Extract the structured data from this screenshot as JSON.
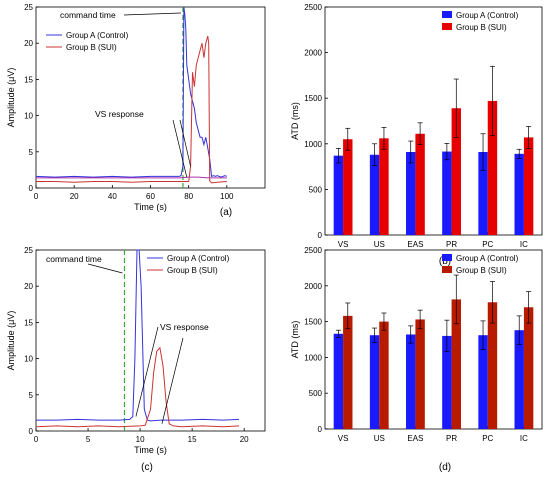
{
  "chart_data": [
    {
      "id": "a",
      "panel_label": "(a)",
      "type": "line",
      "xlabel": "Time (s)",
      "ylabel": "Amplitude (μV)",
      "xlim": [
        0,
        120
      ],
      "ylim": [
        0,
        25
      ],
      "xticks": [
        0,
        20,
        40,
        60,
        80,
        100
      ],
      "yticks": [
        0,
        5,
        10,
        15,
        20,
        25
      ],
      "legend_position": "top-left",
      "series": [
        {
          "name": "Group A (Control)",
          "color": "#3333dd",
          "x": [
            0,
            10,
            20,
            30,
            40,
            50,
            60,
            70,
            75,
            76,
            77,
            77.5,
            78,
            78.5,
            79,
            80,
            81,
            82,
            83,
            84,
            85,
            86,
            87,
            88,
            89,
            90,
            91,
            92,
            93,
            94,
            95,
            96,
            97,
            98,
            99,
            100
          ],
          "y": [
            1.6,
            1.5,
            1.6,
            1.5,
            1.6,
            1.5,
            1.6,
            1.6,
            1.6,
            1.7,
            3,
            25,
            24,
            22,
            17,
            15,
            13,
            12,
            11,
            9,
            8,
            7,
            7,
            6,
            7,
            5.5,
            4,
            1.6,
            1.7,
            1.6,
            1.7,
            1.6,
            1.5,
            1.6,
            1.7,
            1.6
          ]
        },
        {
          "name": "Group B (SUI)",
          "color": "#cc3333",
          "x": [
            0,
            10,
            20,
            30,
            40,
            50,
            60,
            70,
            80,
            81,
            82,
            83,
            84,
            85,
            86,
            87,
            88,
            89,
            90,
            90.5,
            91,
            92,
            95,
            100
          ],
          "y": [
            0.9,
            0.9,
            0.8,
            0.9,
            0.9,
            0.8,
            0.9,
            0.9,
            0.9,
            3,
            16,
            14,
            17,
            18,
            19,
            20,
            18,
            20,
            21,
            20,
            1,
            0.7,
            0.8,
            0.9
          ]
        },
        {
          "name": "",
          "color": "#aa33aa",
          "x": [
            0,
            20,
            40,
            60,
            75,
            80,
            85,
            90,
            95,
            100
          ],
          "y": [
            1.4,
            1.4,
            1.4,
            1.4,
            1.4,
            1.5,
            1.5,
            1.4,
            1.4,
            1.4
          ]
        }
      ],
      "annotations": [
        {
          "text": "command time",
          "type": "vline",
          "x": 77,
          "color": "#33aa33"
        },
        {
          "text": "VS response",
          "type": "arrow"
        }
      ]
    },
    {
      "id": "b",
      "panel_label": "(b)",
      "type": "bar",
      "xlabel": "",
      "ylabel": "ATD (ms)",
      "ylim": [
        0,
        2500
      ],
      "yticks": [
        0,
        500,
        1000,
        1500,
        2000,
        2500
      ],
      "categories": [
        "VS",
        "US",
        "EAS",
        "PR",
        "PC",
        "IC"
      ],
      "legend_position": "top-right",
      "series": [
        {
          "name": "Group A (Control)",
          "color": "#1a1aff",
          "values": [
            870,
            880,
            910,
            915,
            910,
            890
          ],
          "errors": [
            80,
            120,
            120,
            90,
            200,
            50
          ]
        },
        {
          "name": "Group B (SUI)",
          "color": "#e60000",
          "values": [
            1050,
            1060,
            1110,
            1390,
            1470,
            1070
          ],
          "errors": [
            120,
            120,
            120,
            320,
            380,
            120
          ]
        }
      ]
    },
    {
      "id": "c",
      "panel_label": "(c)",
      "type": "line",
      "xlabel": "Time (s)",
      "ylabel": "Amplitude (μV)",
      "xlim": [
        0,
        22
      ],
      "ylim": [
        0,
        25
      ],
      "xticks": [
        0,
        5,
        10,
        15,
        20
      ],
      "yticks": [
        0,
        5,
        10,
        15,
        20,
        25
      ],
      "legend_position": "top-right",
      "series": [
        {
          "name": "Group A (Control)",
          "color": "#3333dd",
          "x": [
            0,
            2,
            4,
            6,
            8,
            9,
            9.3,
            9.5,
            9.7,
            9.9,
            10.1,
            10.4,
            10.7,
            11,
            12,
            14,
            16,
            18,
            19.5
          ],
          "y": [
            1.5,
            1.5,
            1.6,
            1.5,
            1.5,
            1.6,
            2,
            10,
            25,
            25,
            20,
            3,
            1.5,
            1.4,
            1.5,
            1.5,
            1.6,
            1.5,
            1.6
          ]
        },
        {
          "name": "Group B (SUI)",
          "color": "#cc3333",
          "x": [
            0,
            2,
            4,
            6,
            8,
            10,
            10.5,
            11,
            11.3,
            11.6,
            11.9,
            12.2,
            12.5,
            12.8,
            13.2,
            14,
            16,
            18,
            19.5
          ],
          "y": [
            0.6,
            0.7,
            0.6,
            0.7,
            0.6,
            0.7,
            0.8,
            3,
            8,
            11,
            11.5,
            9,
            4,
            1,
            0.7,
            0.6,
            0.7,
            0.6,
            0.7
          ]
        }
      ],
      "annotations": [
        {
          "text": "command time",
          "type": "vline",
          "x": 8.5,
          "color": "#33aa33"
        },
        {
          "text": "VS response",
          "type": "arrow"
        }
      ]
    },
    {
      "id": "d",
      "panel_label": "(d)",
      "type": "bar",
      "xlabel": "",
      "ylabel": "ATD (ms)",
      "ylim": [
        0,
        2500
      ],
      "yticks": [
        0,
        500,
        1000,
        1500,
        2000,
        2500
      ],
      "categories": [
        "VS",
        "US",
        "EAS",
        "PR",
        "PC",
        "IC"
      ],
      "legend_position": "top-right",
      "series": [
        {
          "name": "Group A (Control)",
          "color": "#1a1aff",
          "values": [
            1330,
            1310,
            1320,
            1300,
            1310,
            1380
          ],
          "errors": [
            50,
            100,
            120,
            220,
            200,
            200
          ]
        },
        {
          "name": "Group B (SUI)",
          "color": "#b81a00",
          "values": [
            1580,
            1500,
            1530,
            1810,
            1770,
            1700
          ],
          "errors": [
            180,
            120,
            130,
            340,
            290,
            220
          ]
        }
      ]
    }
  ]
}
